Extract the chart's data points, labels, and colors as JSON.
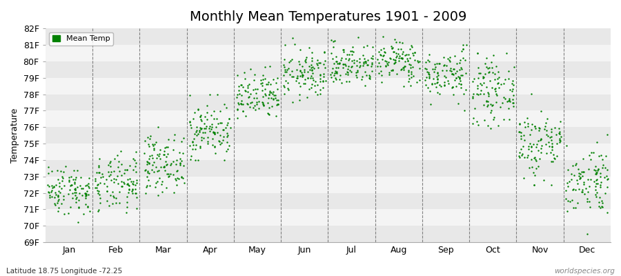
{
  "title": "Monthly Mean Temperatures 1901 - 2009",
  "ylabel": "Temperature",
  "xlabel": "",
  "footnote_left": "Latitude 18.75 Longitude -72.25",
  "footnote_right": "worldspecies.org",
  "legend_label": "Mean Temp",
  "dot_color": "#008000",
  "dot_size": 3,
  "ylim": [
    69,
    82
  ],
  "yticks": [
    69,
    70,
    71,
    72,
    73,
    74,
    75,
    76,
    77,
    78,
    79,
    80,
    81,
    82
  ],
  "ytick_labels": [
    "69F",
    "70F",
    "71F",
    "72F",
    "73F",
    "74F",
    "75F",
    "76F",
    "77F",
    "78F",
    "79F",
    "80F",
    "81F",
    "82F"
  ],
  "months": [
    "Jan",
    "Feb",
    "Mar",
    "Apr",
    "May",
    "Jun",
    "Jul",
    "Aug",
    "Sep",
    "Oct",
    "Nov",
    "Dec"
  ],
  "background_color": "#ffffff",
  "plot_bg_color": "#ffffff",
  "band_color_even": "#e8e8e8",
  "band_color_odd": "#f4f4f4",
  "years": 109,
  "seed": 42,
  "monthly_means": [
    72.2,
    72.5,
    73.8,
    75.8,
    77.8,
    79.2,
    79.8,
    80.0,
    79.2,
    78.2,
    75.0,
    72.8
  ],
  "monthly_stds": [
    0.75,
    0.85,
    0.85,
    0.85,
    0.75,
    0.75,
    0.65,
    0.65,
    0.75,
    0.95,
    1.1,
    1.05
  ],
  "monthly_mins": [
    69.5,
    69.5,
    71.5,
    74.0,
    76.0,
    77.5,
    77.5,
    78.0,
    77.0,
    75.5,
    72.5,
    69.5
  ],
  "monthly_maxs": [
    74.5,
    74.8,
    76.0,
    78.0,
    80.0,
    81.5,
    82.0,
    81.8,
    81.0,
    80.5,
    79.5,
    77.0
  ],
  "title_fontsize": 14,
  "axis_label_fontsize": 9,
  "tick_fontsize": 9,
  "dashed_color": "#666666"
}
